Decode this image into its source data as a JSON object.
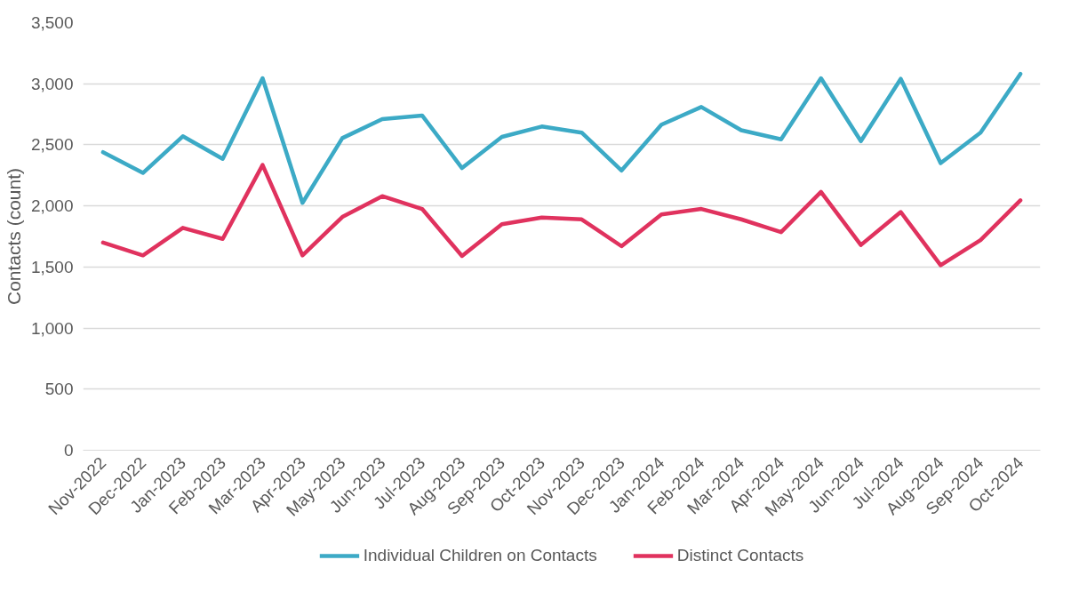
{
  "chart_data": {
    "type": "line",
    "ylabel": "Contacts (count)",
    "categories": [
      "Nov-2022",
      "Dec-2022",
      "Jan-2023",
      "Feb-2023",
      "Mar-2023",
      "Apr-2023",
      "May-2023",
      "Jun-2023",
      "Jul-2023",
      "Aug-2023",
      "Sep-2023",
      "Oct-2023",
      "Nov-2023",
      "Dec-2023",
      "Jan-2024",
      "Feb-2024",
      "Mar-2024",
      "Apr-2024",
      "May-2024",
      "Jun-2024",
      "Jul-2024",
      "Aug-2024",
      "Sep-2024",
      "Oct-2024"
    ],
    "series": [
      {
        "name": "Individual Children on Contacts",
        "color": "#3caac6",
        "values": [
          2440,
          2270,
          2570,
          2385,
          3045,
          2025,
          2555,
          2710,
          2740,
          2310,
          2565,
          2650,
          2600,
          2290,
          2665,
          2810,
          2620,
          2545,
          3045,
          2530,
          3040,
          2350,
          2600,
          3080
        ]
      },
      {
        "name": "Distinct Contacts",
        "color": "#e0325e",
        "values": [
          1700,
          1595,
          1820,
          1730,
          2335,
          1595,
          1910,
          2080,
          1975,
          1590,
          1850,
          1905,
          1890,
          1670,
          1930,
          1975,
          1890,
          1785,
          2115,
          1680,
          1950,
          1515,
          1720,
          2045
        ]
      }
    ],
    "ylim": [
      0,
      3500
    ],
    "yticks": [
      {
        "value": 0,
        "label": "0"
      },
      {
        "value": 500,
        "label": "500"
      },
      {
        "value": 1000,
        "label": "1,000"
      },
      {
        "value": 1500,
        "label": "1,500"
      },
      {
        "value": 2000,
        "label": "2,000"
      },
      {
        "value": 2500,
        "label": "2,500"
      },
      {
        "value": 3000,
        "label": "3,000"
      },
      {
        "value": 3500,
        "label": "3,500"
      }
    ],
    "grid": "y",
    "legend": "bottom",
    "marker": "none",
    "line_style": "solid"
  }
}
